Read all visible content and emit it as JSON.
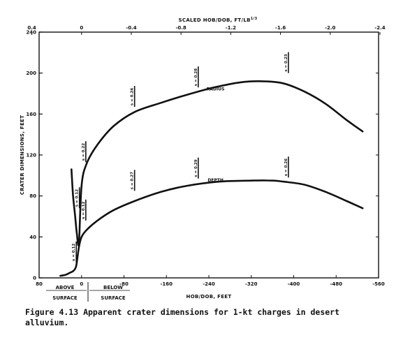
{
  "chart_data": {
    "type": "line",
    "top_axis_title": "SCALED HOB/DOB, FT/LB",
    "top_axis_exponent": "1/3",
    "bottom_axis_title": "HOB/DOB, FEET",
    "ylabel": "CRATER DIMENSIONS, FEET",
    "bottom_ticks": [
      "80",
      "0",
      "-80",
      "-160",
      "-240",
      "-320",
      "-400",
      "-480",
      "-560"
    ],
    "top_ticks": [
      "0.4",
      "0",
      "-0.4",
      "-0.8",
      "-1.2",
      "-1.6",
      "-2.0",
      "-2.4"
    ],
    "top_axis_values": [
      0.4,
      0,
      -0.4,
      -0.8,
      -1.2,
      -1.6,
      -2.0,
      -2.4
    ],
    "bottom_axis_values": [
      80,
      0,
      -80,
      -160,
      -240,
      -320,
      -400,
      -480,
      -560
    ],
    "y_ticks": [
      "0",
      "40",
      "80",
      "120",
      "160",
      "200",
      "240"
    ],
    "y_values": [
      0,
      40,
      80,
      120,
      160,
      200,
      240
    ],
    "xlim": [
      80,
      -560
    ],
    "ylim": [
      0,
      240
    ],
    "zones": {
      "above_top": "ABOVE",
      "above_bottom": "SURFACE",
      "below_top": "BELOW",
      "below_bottom": "SURFACE"
    },
    "series": [
      {
        "name": "RADIUS",
        "x": [
          19,
          16,
          12,
          9,
          5,
          0,
          -10,
          -30,
          -60,
          -100,
          -150,
          -200,
          -250,
          -300,
          -340,
          -380,
          -420,
          -460,
          -500,
          -530
        ],
        "y": [
          106,
          80,
          60,
          44,
          34,
          90,
          112,
          130,
          148,
          162,
          171,
          179,
          186,
          191,
          192,
          190,
          182,
          170,
          154,
          143
        ]
      },
      {
        "name": "DEPTH",
        "x": [
          40,
          30,
          22,
          15,
          10,
          5,
          0,
          -10,
          -30,
          -60,
          -100,
          -150,
          -200,
          -260,
          -320,
          -360,
          -380,
          -420,
          -460,
          -500,
          -530
        ],
        "y": [
          2,
          3,
          5,
          7,
          12,
          30,
          40,
          47,
          56,
          66,
          75,
          84,
          90,
          94,
          95,
          95,
          94,
          91,
          84,
          75,
          68
        ]
      }
    ],
    "annotations": [
      {
        "text": "s = 0.12",
        "x": 10,
        "y": 15
      },
      {
        "text": "s = 0.12",
        "x": 4,
        "y": 68
      },
      {
        "text": "s = 0.12",
        "x": -8,
        "y": 56
      },
      {
        "text": "s = 0.22",
        "x": -8,
        "y": 113
      },
      {
        "text": "s = 0.26",
        "x": -100,
        "y": 167
      },
      {
        "text": "s = 0.27",
        "x": -100,
        "y": 85
      },
      {
        "text": "s = 0.28",
        "x": -220,
        "y": 186
      },
      {
        "text": "s = 0.29",
        "x": -220,
        "y": 97
      },
      {
        "text": "s = 0.23",
        "x": -390,
        "y": 200
      },
      {
        "text": "s = 0.26",
        "x": -390,
        "y": 98
      }
    ]
  },
  "caption": {
    "line1": "Figure 4.13  Apparent crater dimensions for 1-kt charges in desert",
    "line2": "alluvium."
  }
}
